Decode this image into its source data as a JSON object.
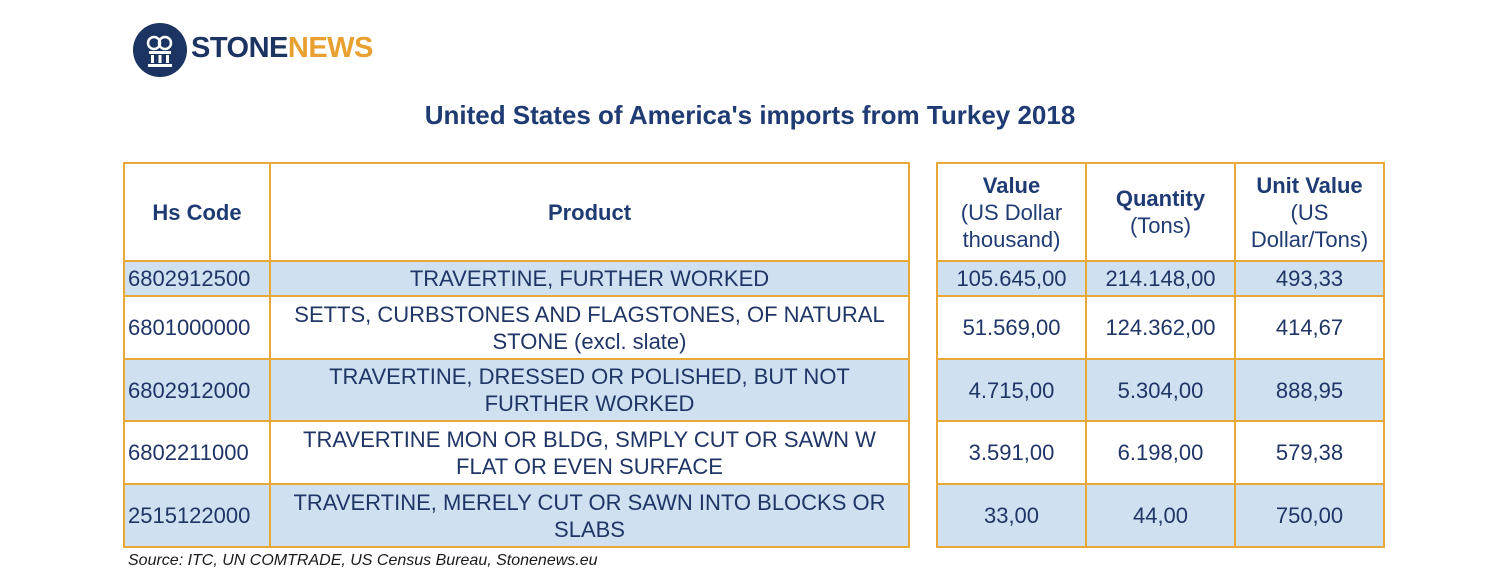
{
  "logo": {
    "part1": "STONE",
    "part2": "NEWS"
  },
  "title": "United States of America's imports from Turkey 2018",
  "table": {
    "headers": [
      "Hs Code",
      "Product"
    ],
    "value_headers": [
      {
        "title": "Value",
        "unit": "(US Dollar thousand)"
      },
      {
        "title": "Quantity",
        "unit": "(Tons)"
      },
      {
        "title": "Unit Value",
        "unit": "(US Dollar/Tons)"
      }
    ],
    "rows": [
      [
        "6802912500",
        "TRAVERTINE, FURTHER WORKED",
        "105.645,00",
        "214.148,00",
        "493,33"
      ],
      [
        "6801000000",
        "SETTS, CURBSTONES AND FLAGSTONES, OF NATURAL STONE (excl. slate)",
        "51.569,00",
        "124.362,00",
        "414,67"
      ],
      [
        "6802912000",
        "TRAVERTINE, DRESSED OR POLISHED, BUT NOT FURTHER WORKED",
        "4.715,00",
        "5.304,00",
        "888,95"
      ],
      [
        "6802211000",
        "TRAVERTINE MON OR BLDG, SMPLY CUT OR SAWN W FLAT OR EVEN SURFACE",
        "3.591,00",
        "6.198,00",
        "579,38"
      ],
      [
        "2515122000",
        "TRAVERTINE, MERELY CUT OR SAWN INTO BLOCKS OR SLABS",
        "33,00",
        "44,00",
        "750,00"
      ]
    ]
  },
  "source": "Source: ITC, UN COMTRADE, US Census Bureau, Stonenews.eu"
}
